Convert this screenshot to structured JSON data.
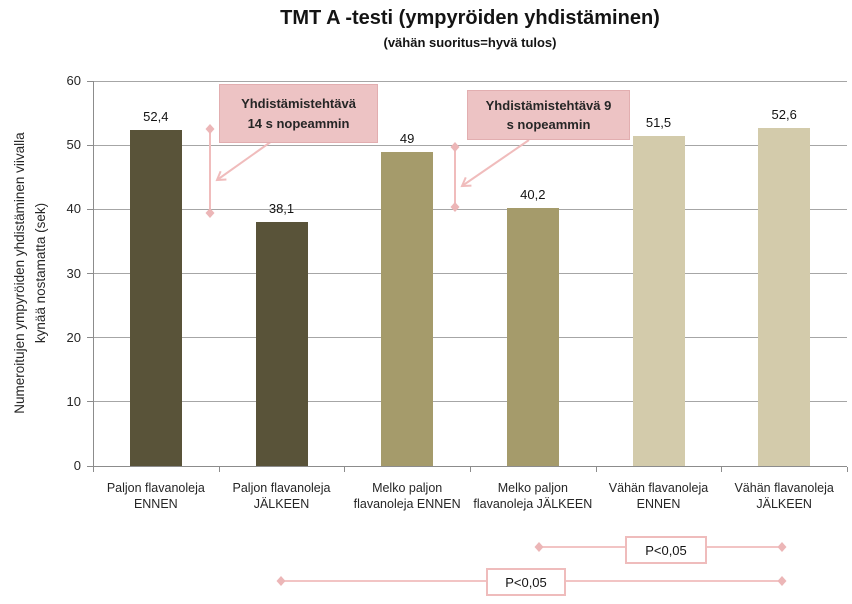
{
  "title": "TMT A -testi (ympyröiden yhdistäminen)",
  "subtitle": "(vähän suoritus=hyvä tulos)",
  "y_axis": {
    "label": "Numeroitujen ympyröiden yhdistäminen viivalla\nkynää nostamatta (sek)",
    "ticks": [
      0,
      10,
      20,
      30,
      40,
      50,
      60
    ]
  },
  "chart_data": {
    "type": "bar",
    "title": "TMT A -testi (ympyröiden yhdistäminen)",
    "subtitle": "(vähän suoritus=hyvä tulos)",
    "ylabel": "Numeroitujen ympyröiden yhdistäminen viivalla kynää nostamatta (sek)",
    "ylim": [
      0,
      60
    ],
    "grid": true,
    "categories": [
      "Paljon flavanoleja ENNEN",
      "Paljon flavanoleja JÄLKEEN",
      "Melko paljon flavanoleja ENNEN",
      "Melko paljon flavanoleja JÄLKEEN",
      "Vähän flavanoleja ENNEN",
      "Vähän flavanoleja JÄLKEEN"
    ],
    "tick_labels": [
      "Paljon flavanoleja\nENNEN",
      "Paljon flavanoleja\nJÄLKEEN",
      "Melko paljon\nflavanoleja ENNEN",
      "Melko paljon\nflavanoleja JÄLKEEN",
      "Vähän flavanoleja\nENNEN",
      "Vähän flavanoleja\nJÄLKEEN"
    ],
    "values": [
      52.4,
      38.1,
      49,
      40.2,
      51.5,
      52.6
    ],
    "value_labels": [
      "52,4",
      "38,1",
      "49",
      "40,2",
      "51,5",
      "52,6"
    ],
    "bar_colors": [
      "#595339",
      "#595339",
      "#a59b6b",
      "#a59b6b",
      "#d3cbab",
      "#d3cbab"
    ]
  },
  "annotations": {
    "callout_left": "Yhdistämistehtävä\n14 s nopeammin",
    "callout_right": "Yhdistämistehtävä 9\ns nopeammin",
    "p_upper": "P<0,05",
    "p_lower": "P<0,05"
  },
  "colors": {
    "bar_dark": "#595339",
    "bar_medium": "#a59b6b",
    "bar_light": "#d3cbab",
    "annotation_fill": "#edc3c4",
    "annotation_line": "#f0bcbc",
    "gridline": "#a6a6a6",
    "axis": "#8c8c8c"
  }
}
